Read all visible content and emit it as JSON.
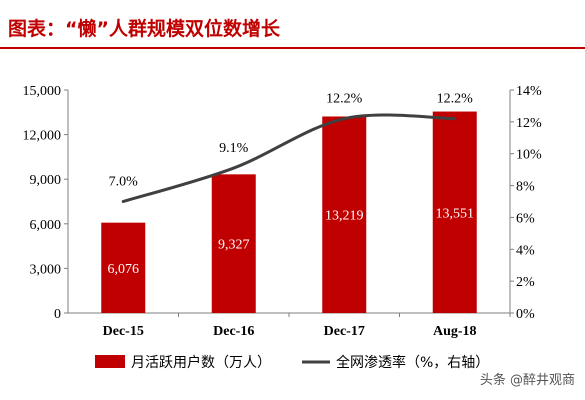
{
  "header": {
    "title": "图表：“懒”人群规模双位数增长"
  },
  "watermark": "头条 @醉井观商",
  "colors": {
    "bar": "#c00000",
    "line": "#404040",
    "title": "#c00000"
  },
  "chart_data": {
    "type": "bar",
    "categories": [
      "Dec-15",
      "Dec-16",
      "Dec-17",
      "Aug-18"
    ],
    "series": [
      {
        "name": "月活跃用户数（万人）",
        "type": "bar",
        "axis": "left",
        "values": [
          6076,
          9327,
          13219,
          13551
        ],
        "labels": [
          "6,076",
          "9,327",
          "13,219",
          "13,551"
        ]
      },
      {
        "name": "全网渗透率（%，右轴）",
        "type": "line",
        "axis": "right",
        "values": [
          7.0,
          9.1,
          12.2,
          12.2
        ],
        "labels": [
          "7.0%",
          "9.1%",
          "12.2%",
          "12.2%"
        ]
      }
    ],
    "y_left": {
      "ylim": [
        0,
        15000
      ],
      "ticks": [
        "0",
        "3,000",
        "6,000",
        "9,000",
        "12,000",
        "15,000"
      ]
    },
    "y_right": {
      "ylim": [
        0,
        14
      ],
      "ticks": [
        "0%",
        "2%",
        "4%",
        "6%",
        "8%",
        "10%",
        "12%",
        "14%"
      ]
    },
    "legend": "bottom"
  }
}
